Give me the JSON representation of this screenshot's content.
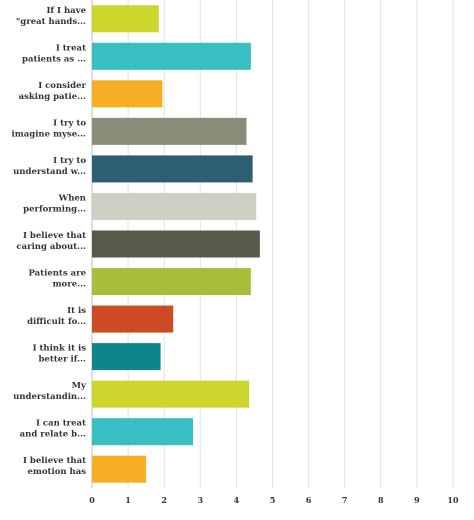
{
  "chart_data": {
    "type": "bar",
    "orientation": "horizontal",
    "categories": [
      [
        "If I have",
        "\"great hands..."
      ],
      [
        "I treat",
        "patients as ..."
      ],
      [
        "I consider",
        "asking patie..."
      ],
      [
        "I try to",
        "imagine myse..."
      ],
      [
        "I try to",
        "understand w..."
      ],
      [
        "When",
        "performing..."
      ],
      [
        "I believe that",
        "caring about..."
      ],
      [
        "Patients are",
        "more..."
      ],
      [
        "It is",
        "difficult fo..."
      ],
      [
        "I think it is",
        "better if..."
      ],
      [
        "My",
        "understandin..."
      ],
      [
        "I can treat",
        "and relate b..."
      ],
      [
        "I believe that",
        "emotion has"
      ]
    ],
    "values": [
      1.85,
      4.4,
      1.95,
      4.28,
      4.45,
      4.55,
      4.65,
      4.4,
      2.25,
      1.9,
      4.35,
      2.8,
      1.5
    ],
    "colors": [
      "#ccd62d",
      "#38bfc3",
      "#f6ae25",
      "#8b8d7b",
      "#2c5f72",
      "#d0cfc3",
      "#585948",
      "#a9bd3a",
      "#cd4a25",
      "#0c868b",
      "#ccd62d",
      "#38bfc3",
      "#f6ae25"
    ],
    "xlim": [
      0,
      10
    ],
    "xticks": [
      0,
      1,
      2,
      3,
      4,
      5,
      6,
      7,
      8,
      9,
      10
    ],
    "grid": true,
    "title": "",
    "xlabel": "",
    "ylabel": ""
  }
}
